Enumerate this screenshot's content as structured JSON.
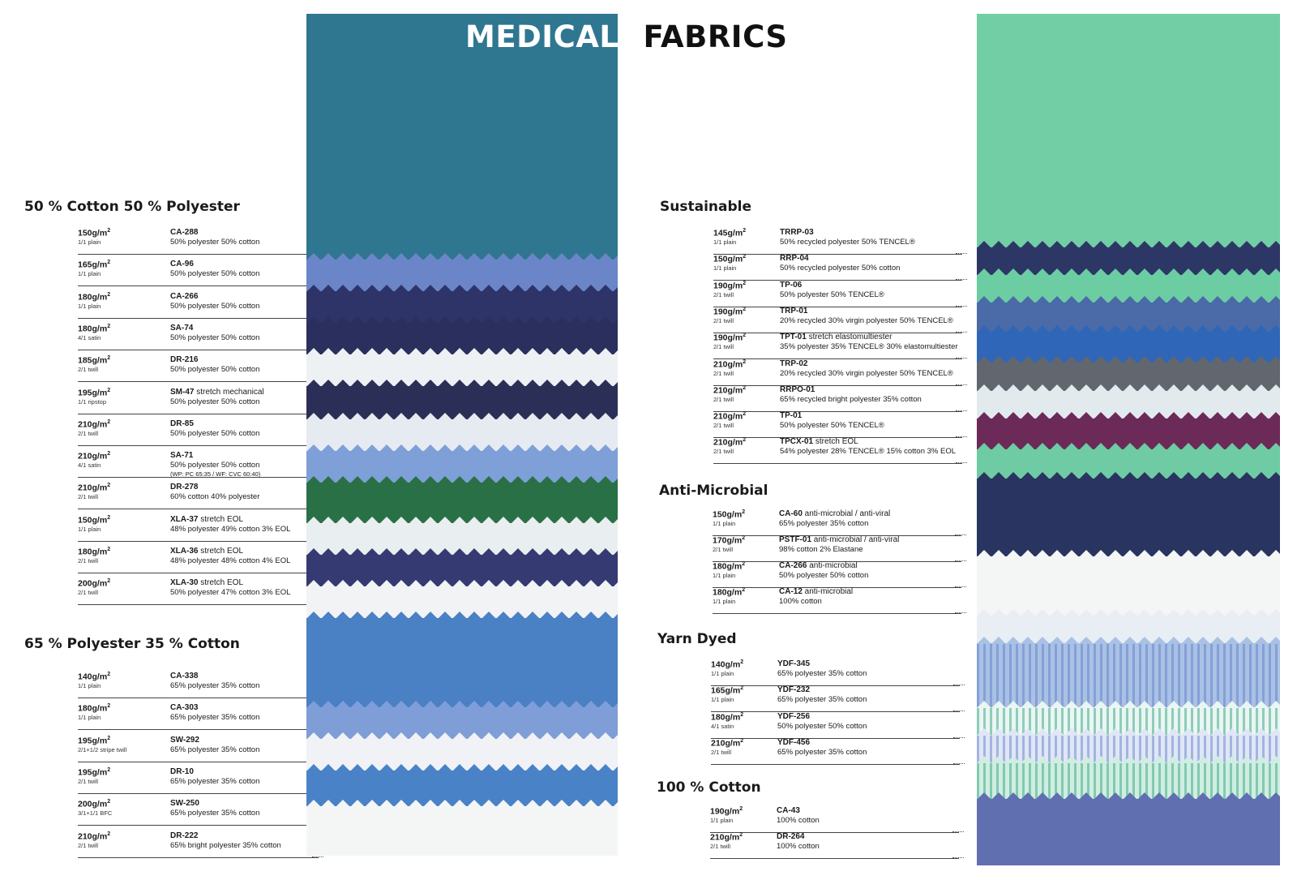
{
  "title": {
    "word1": "MEDICAL",
    "word2": "FABRICS"
  },
  "left_swatches": [
    {
      "color": "#2f7690",
      "h": 0.275
    },
    {
      "color": "#6b86c8",
      "h": 0.035
    },
    {
      "color": "#2f3468",
      "h": 0.035
    },
    {
      "color": "#2a2f5e",
      "h": 0.035
    },
    {
      "color": "#eef1f4",
      "h": 0.035
    },
    {
      "color": "#2b2f58",
      "h": 0.037
    },
    {
      "color": "#e6ebf2",
      "h": 0.035
    },
    {
      "color": "#7f9fd8",
      "h": 0.035
    },
    {
      "color": "#2a7046",
      "h": 0.045
    },
    {
      "color": "#e9eef0",
      "h": 0.035
    },
    {
      "color": "#353a72",
      "h": 0.035
    },
    {
      "color": "#f1f3f5",
      "h": 0.035
    },
    {
      "color": "#4a80c4",
      "h": 0.1
    },
    {
      "color": "#7f9ed7",
      "h": 0.035
    },
    {
      "color": "#f0f2f5",
      "h": 0.035
    },
    {
      "color": "#4a82c8",
      "h": 0.04
    },
    {
      "color": "#f4f6f5",
      "h": 0.059
    }
  ],
  "right_swatches": [
    {
      "color": "#72cea4",
      "h": 0.255
    },
    {
      "color": "#2c3766",
      "h": 0.03
    },
    {
      "color": "#6ccca2",
      "h": 0.03
    },
    {
      "color": "#4b6aa8",
      "h": 0.032
    },
    {
      "color": "#2f66b8",
      "h": 0.034
    },
    {
      "color": "#62666e",
      "h": 0.031
    },
    {
      "color": "#e3eaee",
      "h": 0.03
    },
    {
      "color": "#6c2a58",
      "h": 0.034
    },
    {
      "color": "#6ecba3",
      "h": 0.032
    },
    {
      "color": "#2a3460",
      "h": 0.085
    },
    {
      "color": "#f4f6f6",
      "h": 0.065
    },
    {
      "color": "#e8eef3",
      "h": 0.03
    },
    {
      "color": "#a9c1e4",
      "h": 0.07,
      "pattern": "stripe-blue"
    },
    {
      "color": "#e9f6f1",
      "h": 0.03,
      "pattern": "stripe-green"
    },
    {
      "color": "#dfe6f5",
      "h": 0.03,
      "pattern": "stripe-blue"
    },
    {
      "color": "#cfeee1",
      "h": 0.04,
      "pattern": "stripe-green"
    },
    {
      "color": "#5f6fb0",
      "h": 0.072
    }
  ],
  "sections": [
    {
      "title": "50 % Cotton 50 % Polyester",
      "rows": [
        {
          "weight": "150g/m",
          "weave": "1/1 plain",
          "code": "CA-288",
          "extra": "",
          "comp": "50% polyester 50% cotton",
          "note": ""
        },
        {
          "weight": "165g/m",
          "weave": "1/1 plain",
          "code": "CA-96",
          "extra": "",
          "comp": "50% polyester 50% cotton",
          "note": ""
        },
        {
          "weight": "180g/m",
          "weave": "1/1 plain",
          "code": "CA-266",
          "extra": "",
          "comp": "50% polyester 50% cotton",
          "note": ""
        },
        {
          "weight": "180g/m",
          "weave": "4/1 satin",
          "code": "SA-74",
          "extra": "",
          "comp": "50% polyester 50% cotton",
          "note": ""
        },
        {
          "weight": "185g/m",
          "weave": "2/1 twill",
          "code": "DR-216",
          "extra": "",
          "comp": "50% polyester 50% cotton",
          "note": ""
        },
        {
          "weight": "195g/m",
          "weave": "1/1 ripstop",
          "code": "SM-47",
          "extra": " stretch mechanical",
          "comp": "50% polyester 50% cotton",
          "note": ""
        },
        {
          "weight": "210g/m",
          "weave": "2/1 twill",
          "code": "DR-85",
          "extra": "",
          "comp": "50% polyester 50% cotton",
          "note": ""
        },
        {
          "weight": "210g/m",
          "weave": "4/1 satin",
          "code": "SA-71",
          "extra": "",
          "comp": "50% polyester 50% cotton",
          "note": "(WP: PC 65:35 / WF: CVC 60:40)"
        },
        {
          "weight": "210g/m",
          "weave": "2/1 twill",
          "code": "DR-278",
          "extra": "",
          "comp": "60% cotton 40% polyester",
          "note": ""
        },
        {
          "weight": "150g/m",
          "weave": "1/1 plain",
          "code": "XLA-37",
          "extra": " stretch EOL",
          "comp": "48% polyester 49% cotton 3% EOL",
          "note": ""
        },
        {
          "weight": "180g/m",
          "weave": "2/1 twill",
          "code": "XLA-36",
          "extra": " stretch EOL",
          "comp": "48% polyester 48% cotton 4% EOL",
          "note": ""
        },
        {
          "weight": "200g/m",
          "weave": "2/1 twill",
          "code": "XLA-30",
          "extra": " stretch EOL",
          "comp": "50% polyester 47% cotton 3% EOL",
          "note": ""
        }
      ]
    },
    {
      "title": "65 % Polyester 35 % Cotton",
      "rows": [
        {
          "weight": "140g/m",
          "weave": "1/1 plain",
          "code": "CA-338",
          "extra": "",
          "comp": "65% polyester 35% cotton",
          "note": ""
        },
        {
          "weight": "180g/m",
          "weave": "1/1 plain",
          "code": "CA-303",
          "extra": "",
          "comp": "65% polyester 35% cotton",
          "note": ""
        },
        {
          "weight": "195g/m",
          "weave": "2/1+1/2 stripe twill",
          "code": "SW-292",
          "extra": "",
          "comp": "65% polyester 35% cotton",
          "note": ""
        },
        {
          "weight": "195g/m",
          "weave": "2/1 twill",
          "code": "DR-10",
          "extra": "",
          "comp": "65% polyester 35% cotton",
          "note": ""
        },
        {
          "weight": "200g/m",
          "weave": "3/1+1/1 BFC",
          "code": "SW-250",
          "extra": "",
          "comp": "65% polyester 35% cotton",
          "note": ""
        },
        {
          "weight": "210g/m",
          "weave": "2/1 twill",
          "code": "DR-222",
          "extra": "",
          "comp": "65% bright polyester 35% cotton",
          "note": ""
        }
      ]
    },
    {
      "title": "Sustainable",
      "rows": [
        {
          "weight": "145g/m",
          "weave": "1/1 plain",
          "code": "TRRP-03",
          "extra": "",
          "comp": "50% recycled polyester 50% TENCEL®",
          "note": ""
        },
        {
          "weight": "150g/m",
          "weave": "1/1 plain",
          "code": "RRP-04",
          "extra": "",
          "comp": "50% recycled polyester 50% cotton",
          "note": ""
        },
        {
          "weight": "190g/m",
          "weave": "2/1 twill",
          "code": "TP-06",
          "extra": "",
          "comp": "50% polyester 50% TENCEL®",
          "note": ""
        },
        {
          "weight": "190g/m",
          "weave": "2/1 twill",
          "code": "TRP-01",
          "extra": "",
          "comp": "20% recycled 30% virgin polyester 50% TENCEL®",
          "note": ""
        },
        {
          "weight": "190g/m",
          "weave": "2/1 twill",
          "code": "TPT-01",
          "extra": " stretch elastomultiester",
          "comp": "35% polyester 35% TENCEL® 30% elastomultiester",
          "note": ""
        },
        {
          "weight": "210g/m",
          "weave": "2/1 twill",
          "code": "TRP-02",
          "extra": "",
          "comp": "20% recycled 30% virgin polyester 50% TENCEL®",
          "note": ""
        },
        {
          "weight": "210g/m",
          "weave": "2/1 twill",
          "code": "RRPO-01",
          "extra": "",
          "comp": "65% recycled bright polyester 35% cotton",
          "note": ""
        },
        {
          "weight": "210g/m",
          "weave": "2/1 twill",
          "code": "TP-01",
          "extra": "",
          "comp": "50% polyester 50% TENCEL®",
          "note": ""
        },
        {
          "weight": "210g/m",
          "weave": "2/1 twill",
          "code": "TPCX-01",
          "extra": " stretch EOL",
          "comp": "54% polyester 28% TENCEL® 15% cotton 3% EOL",
          "note": ""
        }
      ]
    },
    {
      "title": "Anti-Microbial",
      "rows": [
        {
          "weight": "150g/m",
          "weave": "1/1 plain",
          "code": "CA-60",
          "extra": " anti-microbial / anti-viral",
          "comp": "65% polyester 35% cotton",
          "note": ""
        },
        {
          "weight": "170g/m",
          "weave": "2/1 twill",
          "code": "PSTF-01",
          "extra": " anti-microbial / anti-viral",
          "comp": "98% cotton 2% Elastane",
          "note": ""
        },
        {
          "weight": "180g/m",
          "weave": "1/1 plain",
          "code": "CA-266",
          "extra": " anti-microbial",
          "comp": "50% polyester 50% cotton",
          "note": ""
        },
        {
          "weight": "180g/m",
          "weave": "1/1 plain",
          "code": "CA-12",
          "extra": " anti-microbial",
          "comp": "100% cotton",
          "note": ""
        }
      ]
    },
    {
      "title": "Yarn Dyed",
      "rows": [
        {
          "weight": "140g/m",
          "weave": "1/1 plain",
          "code": "YDF-345",
          "extra": "",
          "comp": "65% polyester 35% cotton",
          "note": ""
        },
        {
          "weight": "165g/m",
          "weave": "1/1 plain",
          "code": "YDF-232",
          "extra": "",
          "comp": "65% polyester 35% cotton",
          "note": ""
        },
        {
          "weight": "180g/m",
          "weave": "4/1 satin",
          "code": "YDF-256",
          "extra": "",
          "comp": "50% polyester 50% cotton",
          "note": ""
        },
        {
          "weight": "210g/m",
          "weave": "2/1 twill",
          "code": "YDF-456",
          "extra": "",
          "comp": "65% polyester 35% cotton",
          "note": ""
        }
      ]
    },
    {
      "title": "100 % Cotton",
      "rows": [
        {
          "weight": "190g/m",
          "weave": "1/1 plain",
          "code": "CA-43",
          "extra": "",
          "comp": "100% cotton",
          "note": ""
        },
        {
          "weight": "210g/m",
          "weave": "2/1 twill",
          "code": "DR-264",
          "extra": "",
          "comp": "100% cotton",
          "note": ""
        }
      ]
    }
  ]
}
